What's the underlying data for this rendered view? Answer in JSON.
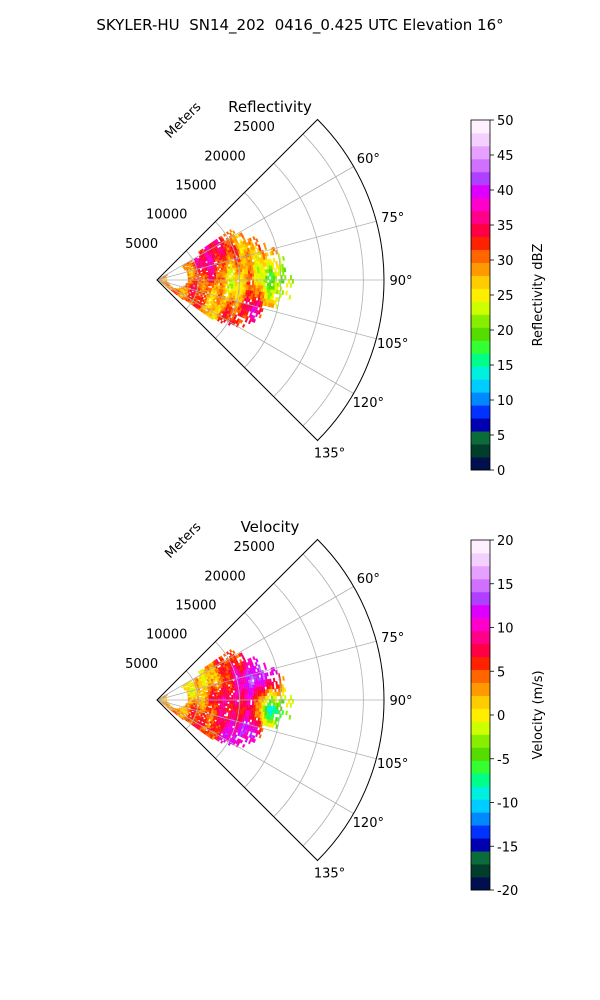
{
  "figure_title": "SKYLER-HU  SN14_202  0416_0.425 UTC Elevation 16°",
  "chart_data": [
    {
      "type": "heatmap",
      "projection": "polar-sector",
      "title": "Reflectivity",
      "range_label": "Meters",
      "range_ticks": [
        5000,
        10000,
        15000,
        20000,
        25000
      ],
      "range_max": 27500,
      "azimuth_ticks": [
        "60°",
        "75°",
        "90°",
        "105°",
        "120°",
        "135°"
      ],
      "azimuth_tick_values": [
        60,
        75,
        90,
        105,
        120,
        135
      ],
      "azimuth_range": [
        45,
        135
      ],
      "grid": true,
      "colorbar": {
        "label": "Reflectivity dBZ",
        "min": 0,
        "max": 50,
        "ticks": [
          0,
          5,
          10,
          15,
          20,
          25,
          30,
          35,
          40,
          45,
          50
        ],
        "colors": [
          "#00104f",
          "#003d2b",
          "#0b6b3a",
          "#0000b0",
          "#0033ff",
          "#0088ff",
          "#00ccff",
          "#00f0e0",
          "#00ff88",
          "#33ff33",
          "#55dd00",
          "#88ee00",
          "#ccff00",
          "#ffee00",
          "#ffcc00",
          "#ff9900",
          "#ff6600",
          "#ff2200",
          "#ff0044",
          "#ff0088",
          "#ff00cc",
          "#dd00ff",
          "#b040ff",
          "#d070ff",
          "#e6a0ff",
          "#f3d0ff",
          "#fff0ff"
        ]
      },
      "field_features": [
        {
          "r": 7000,
          "az": 68,
          "value": 38
        },
        {
          "r": 5000,
          "az": 75,
          "value": 32
        },
        {
          "r": 12000,
          "az": 108,
          "value": 36
        },
        {
          "r": 3000,
          "az": 85,
          "value": 28
        },
        {
          "r": 9000,
          "az": 95,
          "value": 25
        },
        {
          "r": 14000,
          "az": 90,
          "value": 18
        }
      ]
    },
    {
      "type": "heatmap",
      "projection": "polar-sector",
      "title": "Velocity",
      "range_label": "Meters",
      "range_ticks": [
        5000,
        10000,
        15000,
        20000,
        25000
      ],
      "range_max": 27500,
      "azimuth_ticks": [
        "60°",
        "75°",
        "90°",
        "105°",
        "120°",
        "135°"
      ],
      "azimuth_tick_values": [
        60,
        75,
        90,
        105,
        120,
        135
      ],
      "azimuth_range": [
        45,
        135
      ],
      "grid": true,
      "colorbar": {
        "label": "Velocity (m/s)",
        "min": -20,
        "max": 20,
        "ticks": [
          -20,
          -15,
          -10,
          -5,
          0,
          5,
          10,
          15,
          20
        ],
        "colors": [
          "#00104f",
          "#003d2b",
          "#0b6b3a",
          "#0000b0",
          "#0033ff",
          "#0088ff",
          "#00ccff",
          "#00f0e0",
          "#00ff88",
          "#33ff33",
          "#55dd00",
          "#88ee00",
          "#ccff00",
          "#ffee00",
          "#ffcc00",
          "#ff9900",
          "#ff6600",
          "#ff2200",
          "#ff0044",
          "#ff0088",
          "#ff00cc",
          "#dd00ff",
          "#b040ff",
          "#d070ff",
          "#e6a0ff",
          "#f3d0ff",
          "#fff0ff"
        ]
      },
      "field_features": [
        {
          "r": 4000,
          "az": 80,
          "value": 2
        },
        {
          "r": 9000,
          "az": 88,
          "value": 12
        },
        {
          "r": 12000,
          "az": 78,
          "value": 16
        },
        {
          "r": 14000,
          "az": 95,
          "value": -11
        },
        {
          "r": 11000,
          "az": 110,
          "value": 14
        },
        {
          "r": 6000,
          "az": 70,
          "value": -3
        }
      ]
    }
  ]
}
